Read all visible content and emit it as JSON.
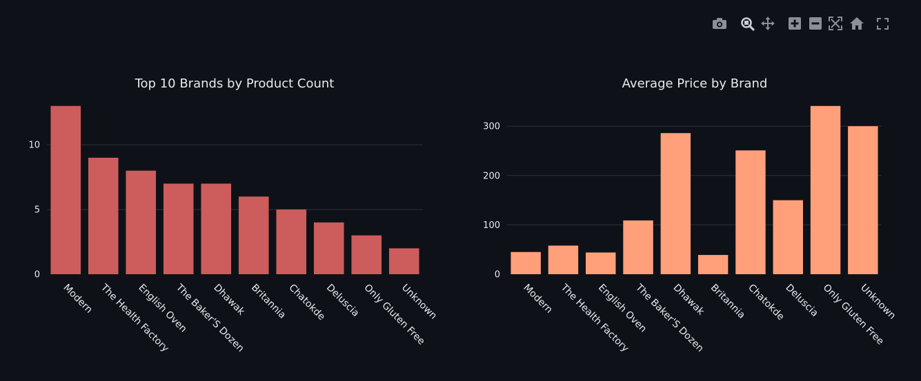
{
  "toolbar": {
    "icons": [
      "camera-icon",
      "zoom-icon",
      "pan-icon",
      "zoom-in-icon",
      "zoom-out-icon",
      "autoscale-icon",
      "reset-axes-icon",
      "fullscreen-icon"
    ]
  },
  "chart_data": [
    {
      "type": "bar",
      "title": "Top 10 Brands by Product Count",
      "categories": [
        "Modern",
        "The Health Factory",
        "English Oven",
        "The Baker'S Dozen",
        "Dhawak",
        "Britannia",
        "Chatokde",
        "Deluscia",
        "Only Gluten Free",
        "Unknown"
      ],
      "values": [
        13,
        9,
        8,
        7,
        7,
        6,
        5,
        4,
        3,
        2
      ],
      "yticks": [
        0,
        5,
        10
      ],
      "ylim": [
        0,
        13.68
      ],
      "color": "#cd5c5c",
      "grid": true
    },
    {
      "type": "bar",
      "title": "Average Price by Brand",
      "categories": [
        "Modern",
        "The Health Factory",
        "English Oven",
        "The Baker'S Dozen",
        "Dhawak",
        "Britannia",
        "Chatokde",
        "Deluscia",
        "Only Gluten Free",
        "Unknown"
      ],
      "values": [
        45,
        58,
        44,
        109,
        286,
        39,
        251,
        150,
        341,
        300
      ],
      "yticks": [
        0,
        100,
        200,
        300
      ],
      "ylim": [
        0,
        358.9
      ],
      "color": "#ffa07a",
      "grid": true
    }
  ]
}
